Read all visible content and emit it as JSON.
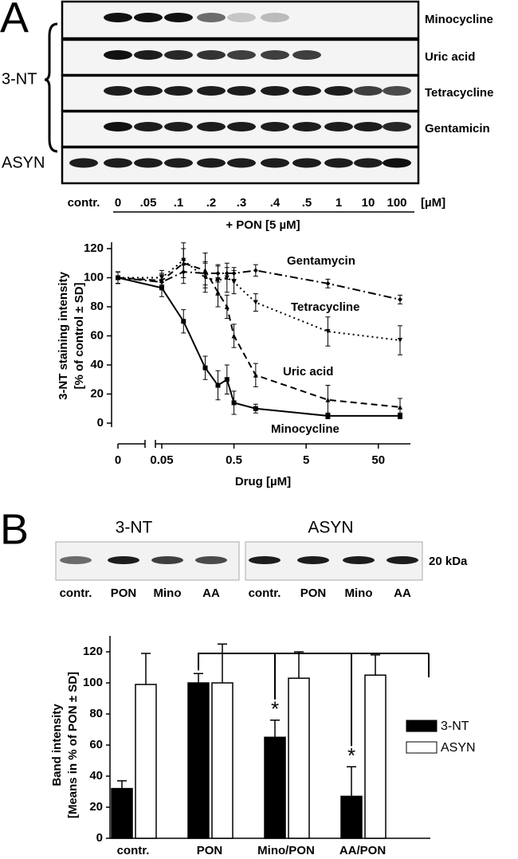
{
  "panel_a": {
    "label": "A",
    "group_label": "3-NT",
    "blot_labels": [
      "Minocycline",
      "Uric acid",
      "Tetracycline",
      "Gentamicin"
    ],
    "control_blot_label": "ASYN",
    "lanes": [
      "contr.",
      "0",
      ".05",
      ".1",
      ".2",
      ".3",
      ".4",
      ".5",
      "1",
      "10",
      "100"
    ],
    "unit": "[µM]",
    "treatment": "+ PON [5 µM]"
  },
  "panel_b": {
    "label": "B",
    "blots": [
      {
        "title": "3-NT",
        "lanes": [
          "contr.",
          "PON",
          "Mino",
          "AA"
        ]
      },
      {
        "title": "ASYN",
        "lanes": [
          "contr.",
          "PON",
          "Mino",
          "AA"
        ]
      }
    ],
    "marker": "20 kDa"
  },
  "chart_data": [
    {
      "type": "line",
      "ylabel": [
        "3-NT staining intensity",
        "[% of control ± SD]"
      ],
      "xlabel": "Drug [µM]",
      "x": [
        0,
        0.05,
        0.1,
        0.2,
        0.3,
        0.4,
        0.5,
        1,
        10,
        100
      ],
      "xscale": "log",
      "xaxis_break": true,
      "xlim": [
        0.05,
        100
      ],
      "xticks": [
        0,
        0.05,
        0.5,
        5,
        50
      ],
      "ylim": [
        0,
        120
      ],
      "yticks": [
        0,
        20,
        40,
        60,
        80,
        100,
        120
      ],
      "series": [
        {
          "name": "Gentamycin",
          "color": "#000000",
          "values": [
            100,
            97,
            104,
            103,
            103,
            103,
            103,
            105,
            96,
            85
          ],
          "errors": [
            4,
            5,
            8,
            8,
            6,
            4,
            4,
            4,
            3,
            3
          ]
        },
        {
          "name": "Tetracycline",
          "color": "#000000",
          "values": [
            100,
            100,
            112,
            100,
            98,
            100,
            97,
            83,
            63,
            57
          ],
          "errors": [
            4,
            5,
            12,
            10,
            10,
            10,
            8,
            6,
            10,
            10
          ]
        },
        {
          "name": "Uric acid",
          "color": "#000000",
          "values": [
            100,
            98,
            110,
            105,
            90,
            80,
            60,
            33,
            16,
            11
          ],
          "errors": [
            4,
            5,
            10,
            12,
            10,
            8,
            8,
            8,
            10,
            6
          ]
        },
        {
          "name": "Minocycline",
          "color": "#000000",
          "values": [
            100,
            93,
            70,
            38,
            26,
            30,
            14,
            10,
            5,
            5
          ],
          "errors": [
            4,
            6,
            8,
            8,
            10,
            10,
            8,
            3,
            2,
            2
          ]
        }
      ]
    },
    {
      "type": "bar",
      "ylabel": [
        "Band intensity",
        "[Means in % of PON ± SD]"
      ],
      "categories": [
        "contr.",
        "PON",
        "Mino/PON",
        "AA/PON"
      ],
      "ylim": [
        0,
        120
      ],
      "yticks": [
        0,
        20,
        40,
        60,
        80,
        100,
        120
      ],
      "series": [
        {
          "name": "3-NT",
          "color": "#000000",
          "values": [
            32,
            100,
            65,
            27
          ],
          "errors": [
            5,
            6,
            11,
            19
          ]
        },
        {
          "name": "ASYN",
          "color": "#ffffff",
          "values": [
            99,
            100,
            103,
            105
          ],
          "errors": [
            20,
            25,
            17,
            13
          ]
        }
      ],
      "annotations": [
        {
          "text": "*",
          "category": "Mino/PON"
        },
        {
          "text": "*",
          "category": "AA/PON"
        }
      ],
      "legend": "right"
    }
  ]
}
